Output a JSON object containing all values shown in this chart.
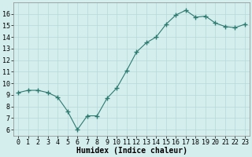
{
  "x": [
    0,
    1,
    2,
    3,
    4,
    5,
    6,
    7,
    8,
    9,
    10,
    11,
    12,
    13,
    14,
    15,
    16,
    17,
    18,
    19,
    20,
    21,
    22,
    23
  ],
  "y": [
    9.2,
    9.4,
    9.4,
    9.2,
    8.8,
    7.6,
    6.0,
    7.2,
    7.2,
    8.7,
    9.6,
    11.1,
    12.7,
    13.5,
    14.0,
    15.1,
    15.9,
    16.3,
    15.7,
    15.8,
    15.2,
    14.9,
    14.8,
    15.1
  ],
  "xlabel": "Humidex (Indice chaleur)",
  "ylim": [
    5.5,
    17.0
  ],
  "xlim": [
    -0.5,
    23.5
  ],
  "yticks": [
    6,
    7,
    8,
    9,
    10,
    11,
    12,
    13,
    14,
    15,
    16
  ],
  "xticks": [
    0,
    1,
    2,
    3,
    4,
    5,
    6,
    7,
    8,
    9,
    10,
    11,
    12,
    13,
    14,
    15,
    16,
    17,
    18,
    19,
    20,
    21,
    22,
    23
  ],
  "line_color": "#2d7a6e",
  "marker": "+",
  "marker_size": 4,
  "bg_color": "#d4eeee",
  "grid_color": "#b8d8d8",
  "xlabel_fontsize": 7,
  "tick_fontsize": 6
}
